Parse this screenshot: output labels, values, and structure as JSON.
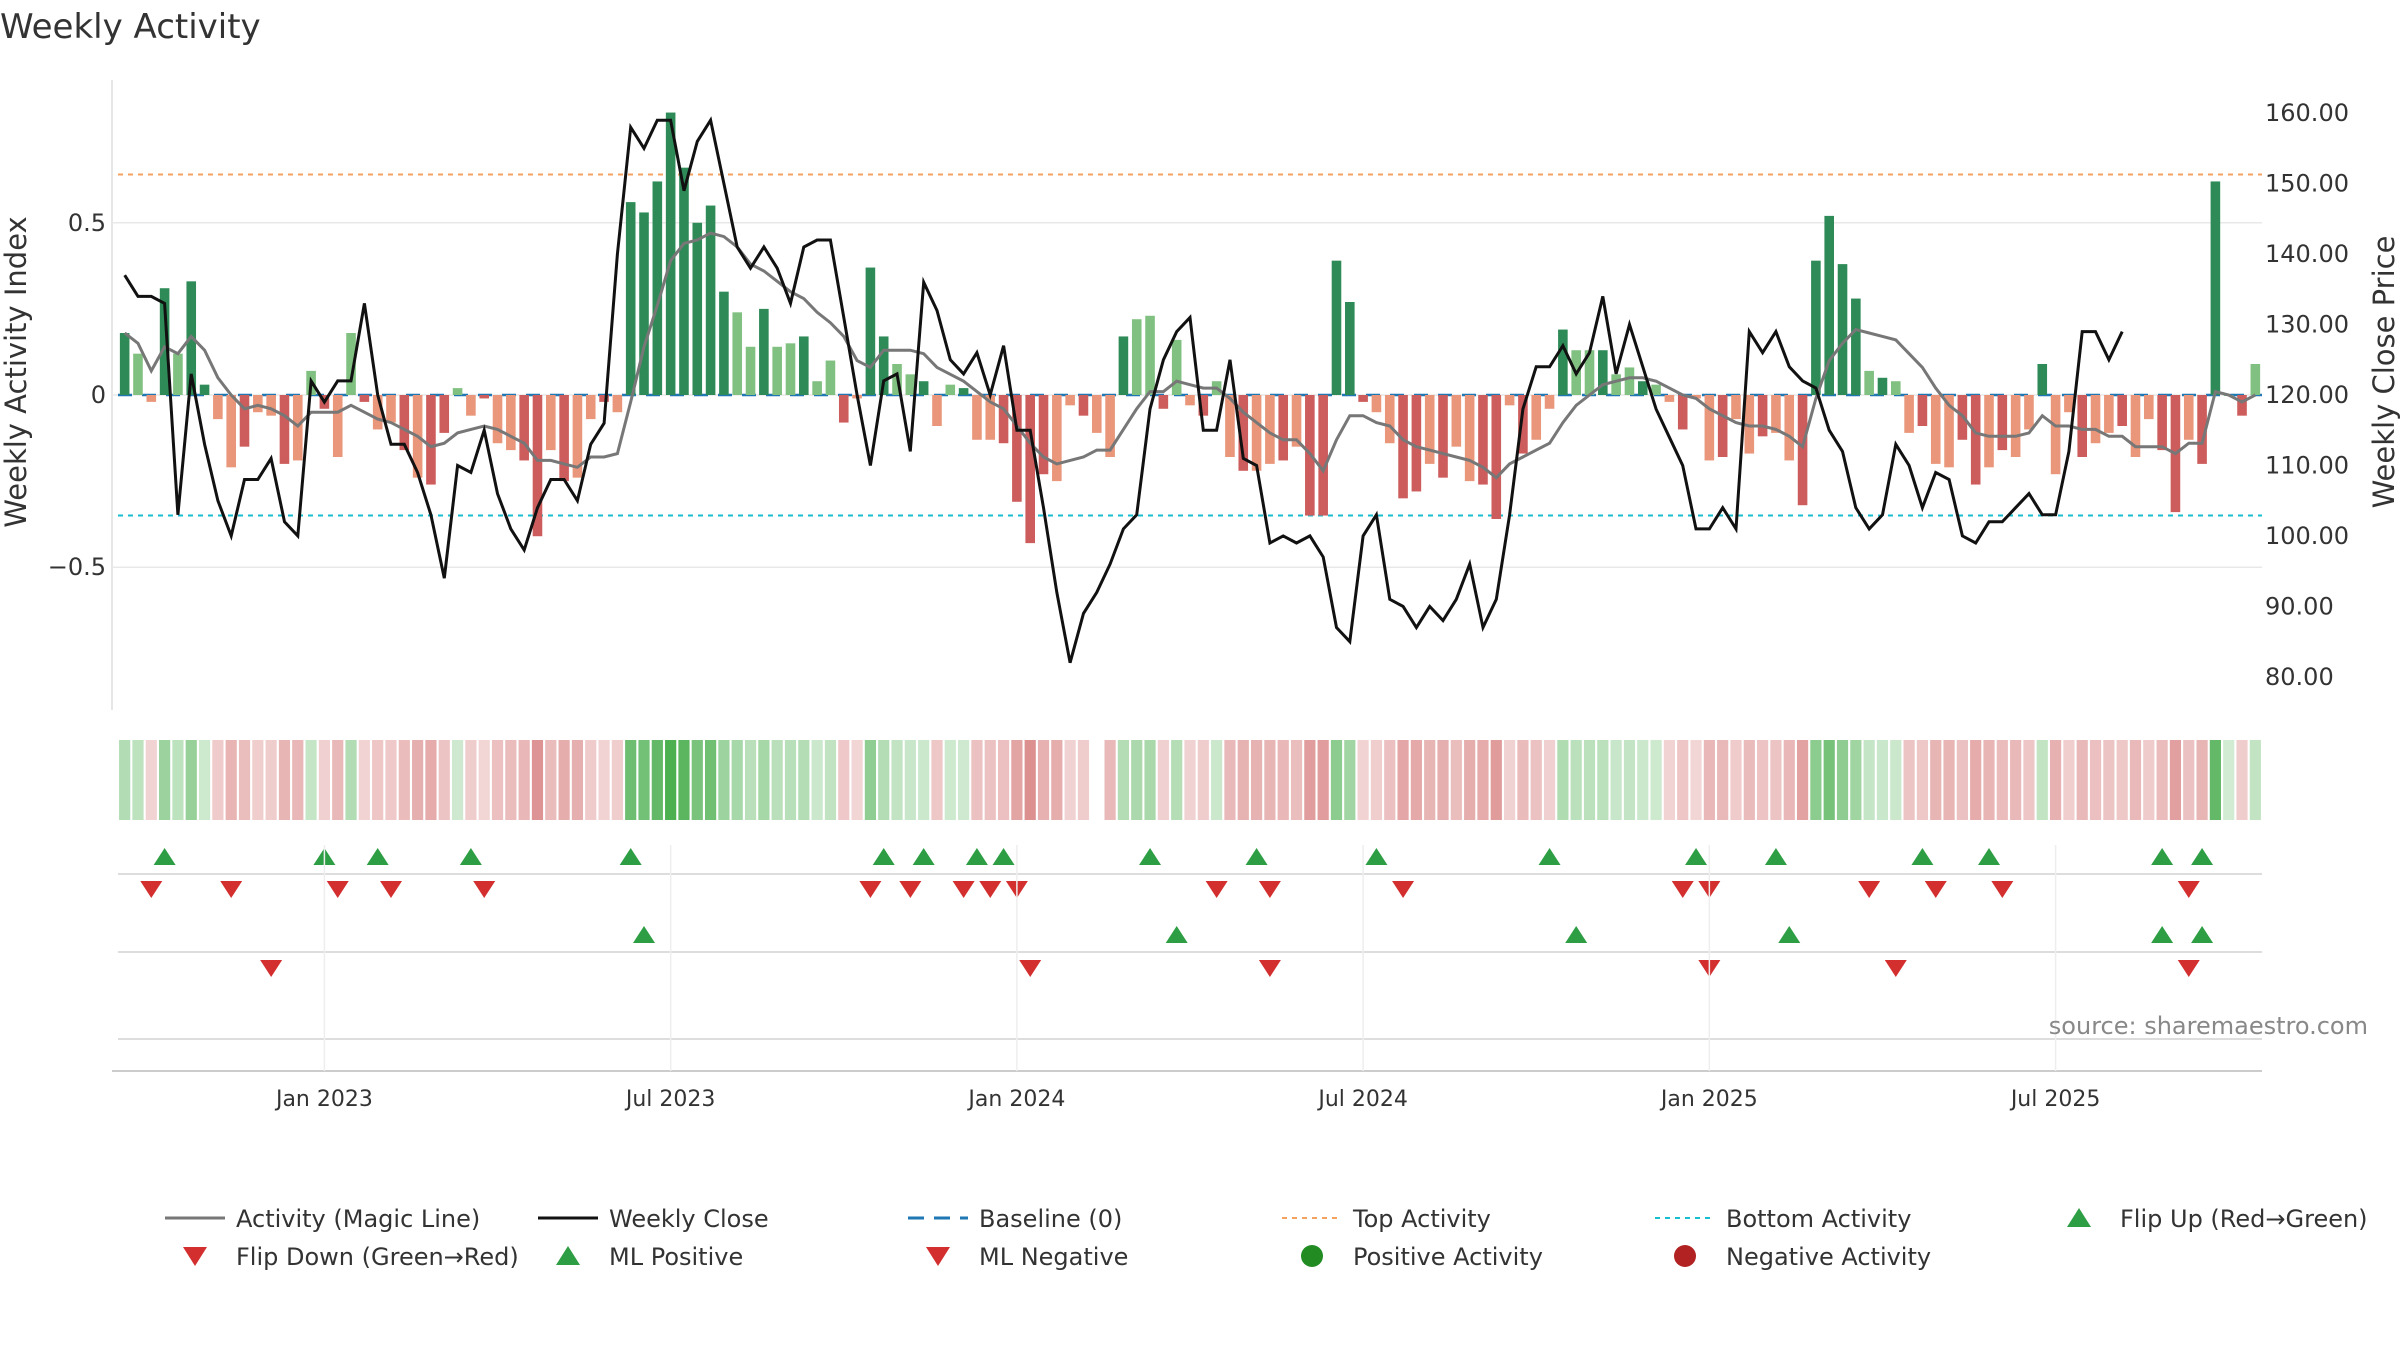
{
  "chart_data": {
    "type": "bar",
    "title": "Weekly Activity",
    "ylabel_left": "Weekly Activity Index",
    "ylabel_right": "Weekly Close Price",
    "ylim_left": [
      -0.9,
      0.9
    ],
    "ylim_right": [
      76,
      164
    ],
    "left_ticks": [
      {
        "v": 0.5,
        "label": "0.5"
      },
      {
        "v": 0,
        "label": "0"
      },
      {
        "v": -0.5,
        "label": "−0.5"
      }
    ],
    "right_ticks": [
      "160.00",
      "150.00",
      "140.00",
      "130.00",
      "120.00",
      "110.00",
      "100.00",
      "90.00",
      "80.00"
    ],
    "right_tick_values": [
      160,
      150,
      140,
      130,
      120,
      110,
      100,
      90,
      80
    ],
    "x_ticks": [
      {
        "week": 15,
        "label": "Jan 2023"
      },
      {
        "week": 41,
        "label": "Jul 2023"
      },
      {
        "week": 67,
        "label": "Jan 2024"
      },
      {
        "week": 93,
        "label": "Jul 2024"
      },
      {
        "week": 119,
        "label": "Jan 2025"
      },
      {
        "week": 145,
        "label": "Jul 2025"
      }
    ],
    "top_activity": 0.64,
    "bottom_activity": -0.35,
    "baseline": 0,
    "source_note": "source: sharemaestro.com",
    "activity": [
      0.18,
      0.12,
      -0.02,
      0.31,
      0.12,
      0.33,
      0.03,
      -0.07,
      -0.21,
      -0.15,
      -0.05,
      -0.06,
      -0.2,
      -0.19,
      0.07,
      -0.04,
      -0.18,
      0.18,
      -0.02,
      -0.1,
      -0.08,
      -0.16,
      -0.24,
      -0.26,
      -0.11,
      0.02,
      -0.06,
      -0.01,
      -0.14,
      -0.16,
      -0.19,
      -0.41,
      -0.16,
      -0.25,
      -0.24,
      -0.07,
      -0.02,
      -0.05,
      0.56,
      0.53,
      0.62,
      0.82,
      0.66,
      0.5,
      0.55,
      0.3,
      0.24,
      0.14,
      0.25,
      0.14,
      0.15,
      0.17,
      0.04,
      0.1,
      -0.08,
      -0.01,
      0.37,
      0.17,
      0.09,
      0.06,
      0.04,
      -0.09,
      0.03,
      0.02,
      -0.13,
      -0.13,
      -0.14,
      -0.31,
      -0.43,
      -0.23,
      -0.25,
      -0.03,
      -0.06,
      -0.11,
      -0.18,
      0.17,
      0.22,
      0.23,
      -0.04,
      0.16,
      -0.03,
      -0.06,
      0.04,
      -0.18,
      -0.22,
      -0.22,
      -0.2,
      -0.19,
      -0.15,
      -0.35,
      -0.35,
      0.39,
      0.27,
      -0.02,
      -0.05,
      -0.14,
      -0.3,
      -0.28,
      -0.2,
      -0.24,
      -0.15,
      -0.25,
      -0.26,
      -0.36,
      -0.03,
      -0.17,
      -0.13,
      -0.04,
      0.19,
      0.13,
      0.13,
      0.13,
      0.06,
      0.08,
      0.04,
      0.03,
      -0.02,
      -0.1,
      -0.01,
      -0.19,
      -0.18,
      -0.07,
      -0.17,
      -0.12,
      -0.11,
      -0.19,
      -0.32,
      0.39,
      0.52,
      0.38,
      0.28,
      0.07,
      0.05,
      0.04,
      -0.11,
      -0.09,
      -0.2,
      -0.21,
      -0.13,
      -0.26,
      -0.21,
      -0.16,
      -0.18,
      -0.1,
      0.09,
      -0.23,
      -0.05,
      -0.18,
      -0.14,
      -0.11,
      -0.09,
      -0.18,
      -0.07,
      -0.16,
      -0.34,
      -0.13,
      -0.2,
      0.62,
      0.0,
      -0.06,
      0.09
    ],
    "weekly_close": [
      137,
      134,
      134,
      133,
      103,
      123,
      113,
      105,
      100,
      108,
      108,
      111,
      102,
      100,
      122,
      119,
      122,
      122,
      133,
      120,
      113,
      113,
      109,
      103,
      94,
      110,
      109,
      115,
      106,
      101,
      98,
      104,
      108,
      108,
      105,
      113,
      116,
      140,
      158,
      155,
      159,
      159,
      149,
      156,
      159,
      150,
      141,
      138,
      141,
      138,
      133,
      141,
      142,
      142,
      131,
      120,
      110,
      122,
      123,
      112,
      136,
      132,
      125,
      123,
      126,
      120,
      127,
      115,
      115,
      104,
      92,
      82,
      89,
      92,
      96,
      101,
      103,
      118,
      125,
      129,
      131,
      115,
      115,
      125,
      111,
      110,
      99,
      100,
      99,
      100,
      97,
      87,
      85,
      100,
      103,
      91,
      90,
      87,
      90,
      88,
      91,
      96,
      87,
      91,
      103,
      118,
      124,
      124,
      127,
      123,
      126,
      134,
      123,
      130,
      124,
      118,
      114,
      110,
      101,
      101,
      104,
      101,
      129,
      126,
      129,
      124,
      122,
      121,
      115,
      112,
      104,
      101,
      103,
      113,
      110,
      104,
      109,
      108,
      100,
      99,
      102,
      102,
      104,
      106,
      103,
      103,
      112,
      129,
      129,
      125,
      129
    ],
    "magic_line": [
      0.18,
      0.15,
      0.07,
      0.14,
      0.12,
      0.17,
      0.13,
      0.05,
      0.0,
      -0.04,
      -0.03,
      -0.04,
      -0.06,
      -0.09,
      -0.05,
      -0.05,
      -0.05,
      -0.03,
      -0.05,
      -0.07,
      -0.08,
      -0.1,
      -0.12,
      -0.15,
      -0.14,
      -0.11,
      -0.1,
      -0.09,
      -0.1,
      -0.12,
      -0.14,
      -0.19,
      -0.19,
      -0.2,
      -0.21,
      -0.18,
      -0.18,
      -0.17,
      -0.02,
      0.14,
      0.26,
      0.39,
      0.44,
      0.45,
      0.47,
      0.46,
      0.43,
      0.38,
      0.36,
      0.33,
      0.3,
      0.28,
      0.24,
      0.21,
      0.17,
      0.1,
      0.08,
      0.13,
      0.13,
      0.13,
      0.12,
      0.08,
      0.06,
      0.04,
      0.01,
      -0.02,
      -0.04,
      -0.09,
      -0.14,
      -0.18,
      -0.2,
      -0.19,
      -0.18,
      -0.16,
      -0.16,
      -0.1,
      -0.04,
      0.01,
      0.01,
      0.04,
      0.03,
      0.02,
      0.02,
      -0.01,
      -0.05,
      -0.08,
      -0.11,
      -0.13,
      -0.13,
      -0.17,
      -0.22,
      -0.13,
      -0.06,
      -0.06,
      -0.08,
      -0.09,
      -0.13,
      -0.15,
      -0.16,
      -0.17,
      -0.18,
      -0.19,
      -0.21,
      -0.24,
      -0.2,
      -0.18,
      -0.16,
      -0.14,
      -0.08,
      -0.03,
      0.0,
      0.03,
      0.04,
      0.05,
      0.05,
      0.04,
      0.02,
      0.0,
      -0.01,
      -0.04,
      -0.06,
      -0.08,
      -0.09,
      -0.09,
      -0.1,
      -0.12,
      -0.15,
      -0.01,
      0.1,
      0.15,
      0.19,
      0.18,
      0.17,
      0.16,
      0.12,
      0.08,
      0.02,
      -0.03,
      -0.06,
      -0.11,
      -0.12,
      -0.12,
      -0.12,
      -0.11,
      -0.06,
      -0.09,
      -0.09,
      -0.1,
      -0.1,
      -0.12,
      -0.12,
      -0.15,
      -0.15,
      -0.15,
      -0.17,
      -0.14,
      -0.14,
      0.01,
      0.0,
      -0.02,
      0.0
    ],
    "heat_gap_week": 73,
    "flip_up_weeks": [
      3,
      15,
      19,
      26,
      38,
      57,
      60,
      64,
      66,
      77,
      85,
      94,
      107,
      118,
      124,
      135,
      140,
      153,
      156
    ],
    "flip_down_weeks": [
      2,
      8,
      16,
      20,
      27,
      56,
      59,
      63,
      65,
      67,
      82,
      86,
      96,
      117,
      119,
      131,
      136,
      141,
      155
    ],
    "ml_positive_weeks": [
      39,
      79,
      109,
      125,
      153,
      156
    ],
    "ml_negative_weeks": [
      11,
      68,
      86,
      119,
      133,
      155
    ],
    "legend": [
      {
        "label": "Activity (Magic Line)",
        "marker": "line",
        "color": "#777777"
      },
      {
        "label": "Weekly Close",
        "marker": "line",
        "color": "#111111"
      },
      {
        "label": "Baseline (0)",
        "marker": "dash",
        "color": "#1f77b4"
      },
      {
        "label": "Top Activity",
        "marker": "dot-line",
        "color": "#f4a261"
      },
      {
        "label": "Bottom Activity",
        "marker": "dot-line",
        "color": "#17becf"
      },
      {
        "label": "Flip Up (Red→Green)",
        "marker": "triangle-up",
        "color": "#2e9e44"
      },
      {
        "label": "Flip Down (Green→Red)",
        "marker": "triangle-down",
        "color": "#d32f2f"
      },
      {
        "label": "ML Positive",
        "marker": "triangle-up",
        "color": "#2e9e44"
      },
      {
        "label": "ML Negative",
        "marker": "triangle-down",
        "color": "#d32f2f"
      },
      {
        "label": "Positive Activity",
        "marker": "circle",
        "color": "#228b22"
      },
      {
        "label": "Negative Activity",
        "marker": "circle",
        "color": "#b22222"
      }
    ],
    "colors": {
      "pos_strong": "#2e8b57",
      "pos_light": "#80c080",
      "neg_strong": "#cd5c5c",
      "neg_light": "#e9967a",
      "grid": "#e8e8e8"
    }
  }
}
